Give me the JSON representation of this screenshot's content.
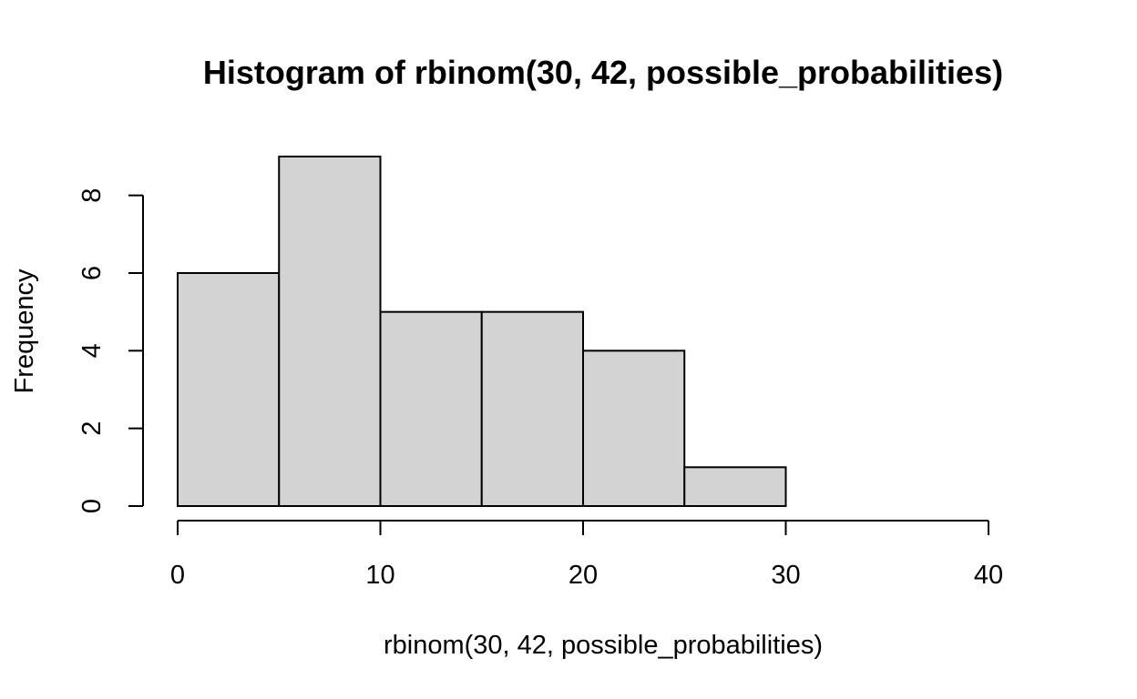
{
  "chart_data": {
    "type": "bar",
    "title": "Histogram of rbinom(30, 42, possible_probabilities)",
    "xlabel": "rbinom(30, 42, possible_probabilities)",
    "ylabel": "Frequency",
    "bins": [
      {
        "start": 0,
        "end": 5,
        "count": 6
      },
      {
        "start": 5,
        "end": 10,
        "count": 9
      },
      {
        "start": 10,
        "end": 15,
        "count": 5
      },
      {
        "start": 15,
        "end": 20,
        "count": 5
      },
      {
        "start": 20,
        "end": 25,
        "count": 4
      },
      {
        "start": 25,
        "end": 30,
        "count": 1
      }
    ],
    "xlim": [
      0,
      40
    ],
    "ylim": [
      0,
      9
    ],
    "x_ticks": [
      0,
      10,
      20,
      30,
      40
    ],
    "y_ticks": [
      0,
      2,
      4,
      6,
      8
    ],
    "bar_color": "#d3d3d3",
    "grid": false,
    "legend": "none"
  }
}
